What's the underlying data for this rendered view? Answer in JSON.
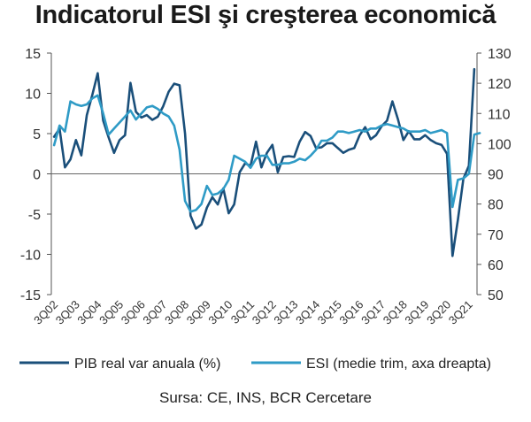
{
  "chart_data": {
    "type": "line",
    "title": "Indicatorul ESI şi creşterea economică",
    "source": "Sursa: CE, INS, BCR Cercetare",
    "x_labels": [
      "3Q02",
      "3Q03",
      "3Q04",
      "3Q05",
      "3Q06",
      "3Q07",
      "3Q08",
      "3Q09",
      "3Q10",
      "3Q11",
      "3Q12",
      "3Q13",
      "3Q14",
      "3Q15",
      "3Q16",
      "3Q17",
      "3Q18",
      "3Q19",
      "3Q20",
      "3Q21"
    ],
    "y_left": {
      "min": -15,
      "max": 15,
      "ticks": [
        -15,
        -10,
        -5,
        0,
        5,
        10,
        15
      ]
    },
    "y_right": {
      "min": 50,
      "max": 130,
      "ticks": [
        50,
        60,
        70,
        80,
        90,
        100,
        110,
        120,
        130
      ]
    },
    "series": [
      {
        "name": "PIB real var anuala (%)",
        "axis": "left",
        "color": "#1a4f7a",
        "values": [
          4.6,
          5.6,
          0.8,
          1.8,
          4.2,
          2.3,
          7.3,
          9.8,
          12.5,
          6.6,
          4.5,
          2.6,
          4.2,
          4.8,
          11.3,
          7.7,
          7.0,
          7.3,
          6.7,
          7.1,
          8.4,
          10.2,
          11.2,
          11.0,
          5.0,
          -5.2,
          -6.8,
          -6.3,
          -4.2,
          -2.9,
          -3.8,
          -1.8,
          -4.9,
          -3.8,
          0.2,
          1.3,
          1.0,
          4.0,
          0.8,
          2.6,
          3.6,
          0.2,
          2.1,
          2.2,
          2.1,
          4.0,
          5.2,
          4.7,
          3.2,
          3.3,
          3.8,
          3.8,
          3.2,
          2.6,
          3.0,
          3.2,
          4.8,
          5.8,
          4.3,
          4.8,
          5.9,
          6.6,
          9.0,
          6.8,
          4.2,
          5.3,
          4.3,
          4.3,
          4.8,
          4.2,
          3.8,
          3.6,
          2.5,
          -10.2,
          -5.7,
          -0.6,
          1.0,
          13.0
        ]
      },
      {
        "name": "ESI (medie trim, axa dreapta)",
        "axis": "right",
        "color": "#2f9bc6",
        "values": [
          99.5,
          106.0,
          104.0,
          114.0,
          113.0,
          112.5,
          113.0,
          115.0,
          116.0,
          110.0,
          103.0,
          105.0,
          107.0,
          109.0,
          111.0,
          108.0,
          110.0,
          112.0,
          112.5,
          111.5,
          110.0,
          109.0,
          106.0,
          98.0,
          81.0,
          77.5,
          78.0,
          80.0,
          86.0,
          83.0,
          83.5,
          85.0,
          88.0,
          96.0,
          95.0,
          94.0,
          92.0,
          95.0,
          96.0,
          96.0,
          93.0,
          93.0,
          93.5,
          93.5,
          94.0,
          95.0,
          94.5,
          96.0,
          98.0,
          101.0,
          101.0,
          102.0,
          104.0,
          104.0,
          103.5,
          104.0,
          104.5,
          104.0,
          105.0,
          105.0,
          106.0,
          106.5,
          106.0,
          105.5,
          105.0,
          104.0,
          104.0,
          104.0,
          104.5,
          103.5,
          104.0,
          104.5,
          103.5,
          79.0,
          88.0,
          88.5,
          90.0,
          103.0,
          103.5
        ]
      }
    ],
    "zero_line": 0,
    "grid": false,
    "legend_position": "bottom"
  }
}
